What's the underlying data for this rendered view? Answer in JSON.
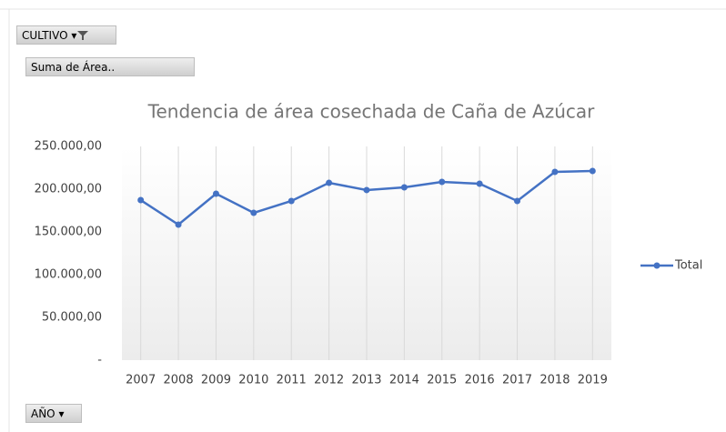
{
  "pivot_fields": {
    "filter": "CULTIVO",
    "values": "Suma de Área..",
    "axis": "AÑO"
  },
  "chart_data": {
    "type": "line",
    "title": "Tendencia de área cosechada de Caña de Azúcar",
    "categories": [
      "2007",
      "2008",
      "2009",
      "2010",
      "2011",
      "2012",
      "2013",
      "2014",
      "2015",
      "2016",
      "2017",
      "2018",
      "2019"
    ],
    "series": [
      {
        "name": "Total",
        "color": "#4472c4",
        "values": [
          187200,
          158500,
          194700,
          172300,
          186200,
          207400,
          199000,
          202100,
          208500,
          206400,
          186200,
          220200,
          221300
        ]
      }
    ],
    "ylim": [
      0,
      250000
    ],
    "yticks": [
      {
        "value": 0,
        "label": "-"
      },
      {
        "value": 50000,
        "label": "50.000,00"
      },
      {
        "value": 100000,
        "label": "100.000,00"
      },
      {
        "value": 150000,
        "label": "150.000,00"
      },
      {
        "value": 200000,
        "label": "200.000,00"
      },
      {
        "value": 250000,
        "label": "250.000,00"
      }
    ],
    "grid": true,
    "legend": "right"
  }
}
